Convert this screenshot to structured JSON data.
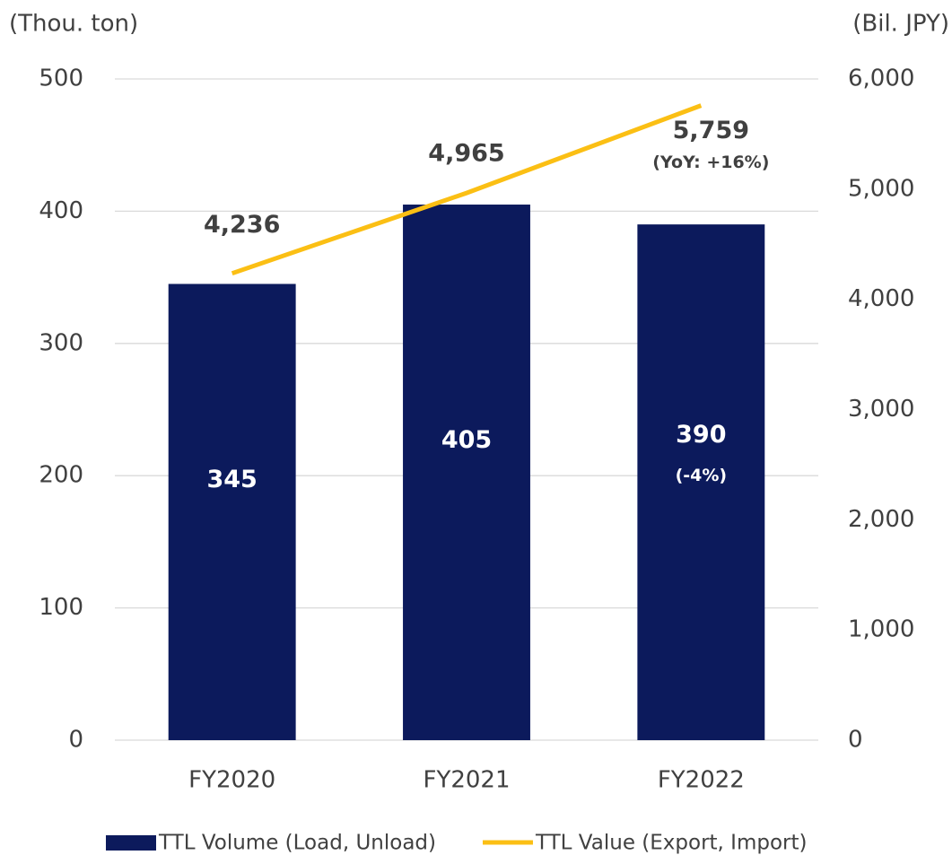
{
  "chart_data": {
    "type": "bar_line",
    "y_label": "(Thou. ton)",
    "y2_label": "(Bil. JPY)",
    "categories": [
      "FY2020",
      "FY2021",
      "FY2022"
    ],
    "series": [
      {
        "name": "TTL Volume (Load, Unload)",
        "type": "bar",
        "color": "#0c1a5c",
        "values": [
          345,
          405,
          390
        ]
      },
      {
        "name": "TTL Value (Export, Import)",
        "type": "line",
        "axis": "y2",
        "color": "#fbbf14",
        "values": [
          4236,
          4965,
          5759
        ],
        "value_labels": [
          "4,236",
          "4,965",
          "5,759"
        ]
      }
    ],
    "annotations": [
      "(-4%)",
      "(YoY: +16%)"
    ],
    "ylim": [
      0,
      500
    ],
    "yticks": [
      0,
      100,
      200,
      300,
      400,
      500
    ],
    "y2lim": [
      0,
      6000
    ],
    "y2ticks": [
      0,
      {
        "value": 1000,
        "label": "1,000"
      },
      {
        "value": 2000,
        "label": "2,000"
      },
      {
        "value": 3000,
        "label": "3,000"
      },
      {
        "value": 4000,
        "label": "4,000"
      },
      {
        "value": 5000,
        "label": "5,000"
      },
      {
        "value": 6000,
        "label": "6,000"
      }
    ],
    "grid": true,
    "legend": "bottom"
  }
}
